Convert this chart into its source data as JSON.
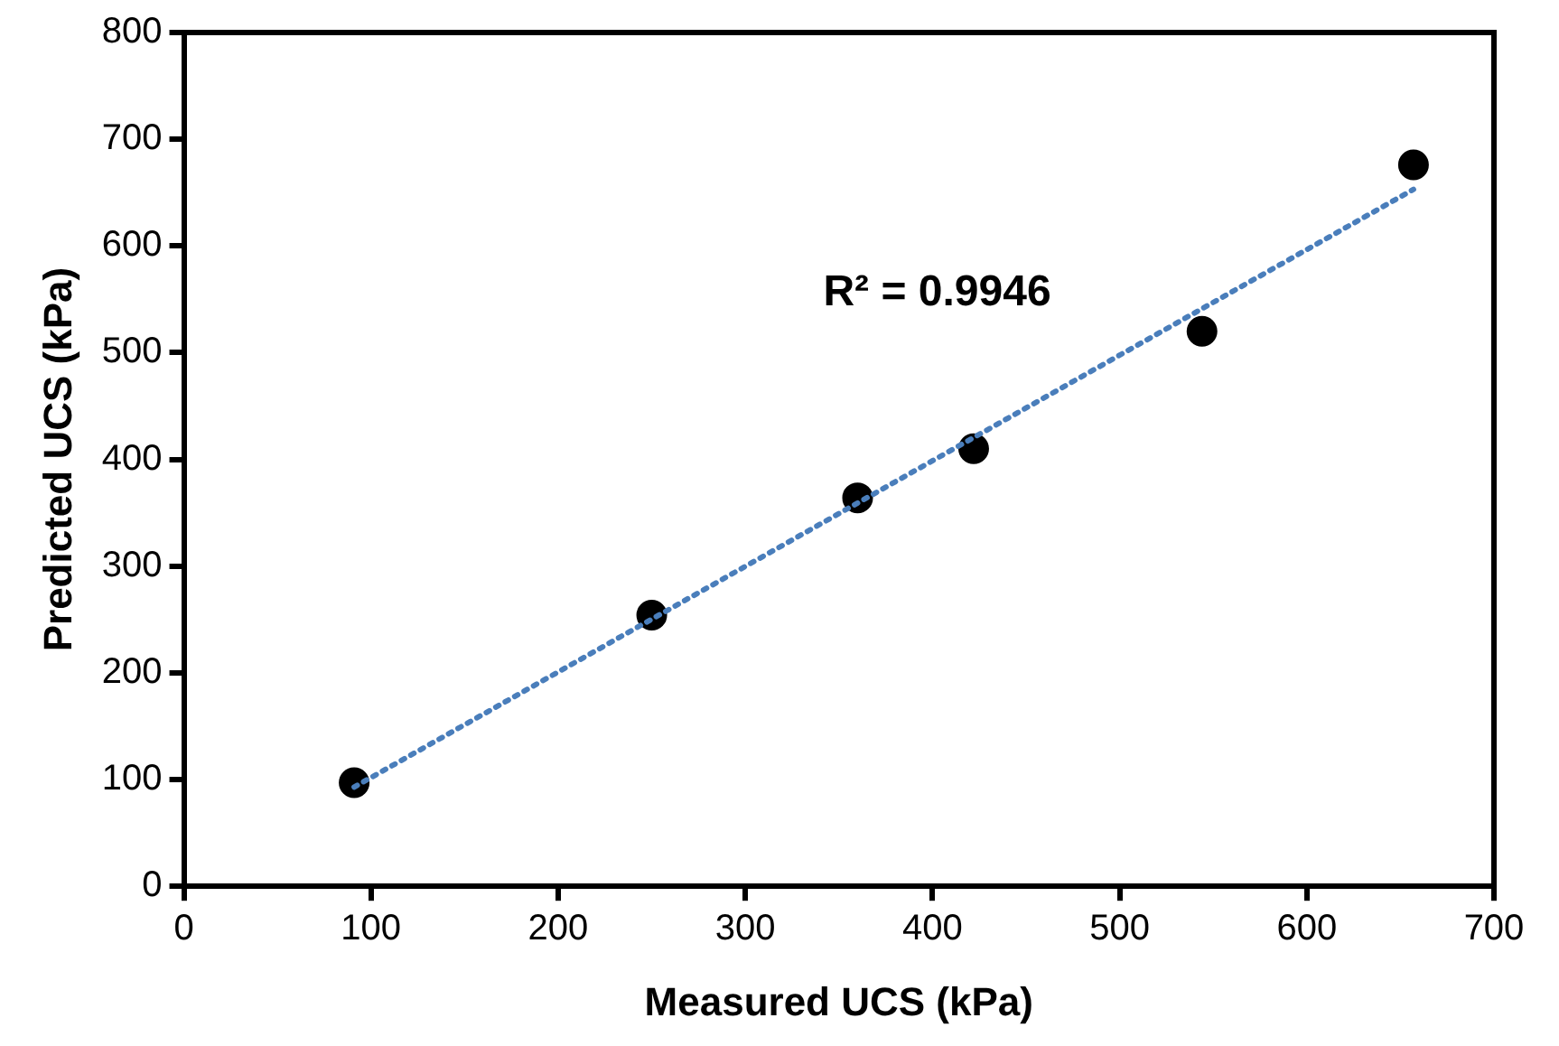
{
  "chart_data": {
    "type": "scatter",
    "xlabel": "Measured UCS (kPa)",
    "ylabel": "Predicted UCS (kPa)",
    "xlim": [
      0,
      700
    ],
    "xticks": [
      0,
      100,
      200,
      300,
      400,
      500,
      600,
      700
    ],
    "ylim": [
      0,
      800
    ],
    "yticks": [
      0,
      100,
      200,
      300,
      400,
      500,
      600,
      700,
      800
    ],
    "grid": false,
    "legend": false,
    "marker": "circle",
    "series": [
      {
        "color": "#000000",
        "x": [
          91,
          250,
          360,
          422,
          544,
          657
        ],
        "values": [
          97,
          254,
          364,
          410,
          520,
          676
        ]
      },
      {
        "type": "line",
        "color": "#4a7ebb",
        "line_style": "dotted",
        "marker": "none",
        "x": [
          91,
          657
        ],
        "values": [
          93,
          653
        ]
      }
    ],
    "annotations": [
      "R² = 0.9946"
    ]
  }
}
